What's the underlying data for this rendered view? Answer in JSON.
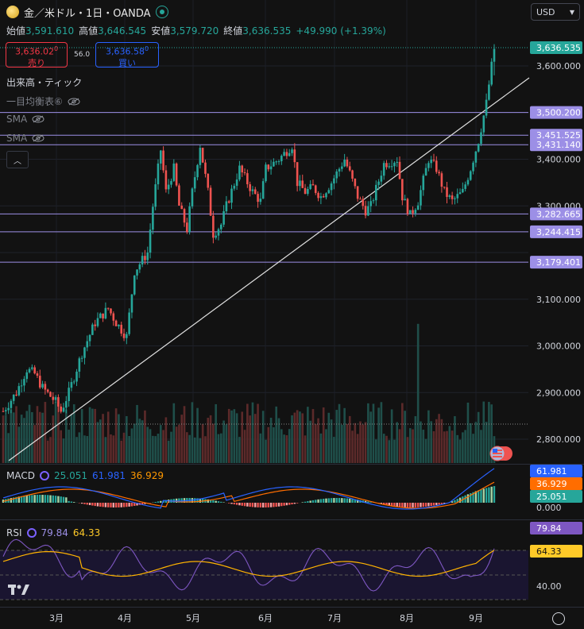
{
  "header": {
    "symbol_title": "金／米ドル・1日・OANDA",
    "currency_select": "USD",
    "ohlc": {
      "open_label": "始値",
      "open": "3,591.610",
      "high_label": "高値",
      "high": "3,646.545",
      "low_label": "安値",
      "low": "3,579.720",
      "close_label": "終値",
      "close": "3,636.535",
      "change": "+49.990 (+1.39%)"
    },
    "sell": {
      "price": "3,636.02",
      "sup": "0",
      "label": "売り"
    },
    "buy": {
      "price": "3,636.58",
      "sup": "0",
      "label": "買い"
    },
    "spread": "56.0"
  },
  "indicators": {
    "volume": "出来高・ティック",
    "ichimoku": "一目均衡表⑥",
    "sma1": "SMA",
    "sma2": "SMA"
  },
  "macd_legend": {
    "title": "MACD",
    "hist": "25.051",
    "macd": "61.981",
    "signal": "36.929"
  },
  "rsi_legend": {
    "title": "RSI",
    "rsi": "79.84",
    "ma": "64.33"
  },
  "price_axis": {
    "ticks": [
      "3,600.000",
      "3,500.200",
      "3,451.525",
      "3,431.140",
      "3,400.000",
      "3,300.000",
      "3,282.665",
      "3,244.415",
      "3,179.401",
      "3,100.000",
      "3,000.000",
      "2,900.000",
      "2,800.000"
    ],
    "last_price": "3,636.535"
  },
  "macd_axis": {
    "ticks": [
      "0.000"
    ]
  },
  "rsi_axis": {
    "ticks": [
      "40.00"
    ],
    "rsi_ma_tag": "64.33",
    "rsi_tag": "79.84"
  },
  "time_axis": [
    "3月",
    "4月",
    "5月",
    "6月",
    "7月",
    "8月",
    "9月"
  ],
  "colors": {
    "up": "#26a69a",
    "down": "#ef5350",
    "level_line": "#9c8fe6",
    "trendline": "#e0e0e0",
    "macd": "#2962ff",
    "signal": "#ff6d00",
    "rsi": "#7e57c2",
    "rsi_ma": "#ffb300"
  },
  "chart_data": {
    "type": "candlestick",
    "ylim": [
      2740,
      3665
    ],
    "horizontal_levels": [
      3500.2,
      3451.525,
      3431.14,
      3282.665,
      3244.415,
      3179.401
    ],
    "last_close": 3636.535
  }
}
